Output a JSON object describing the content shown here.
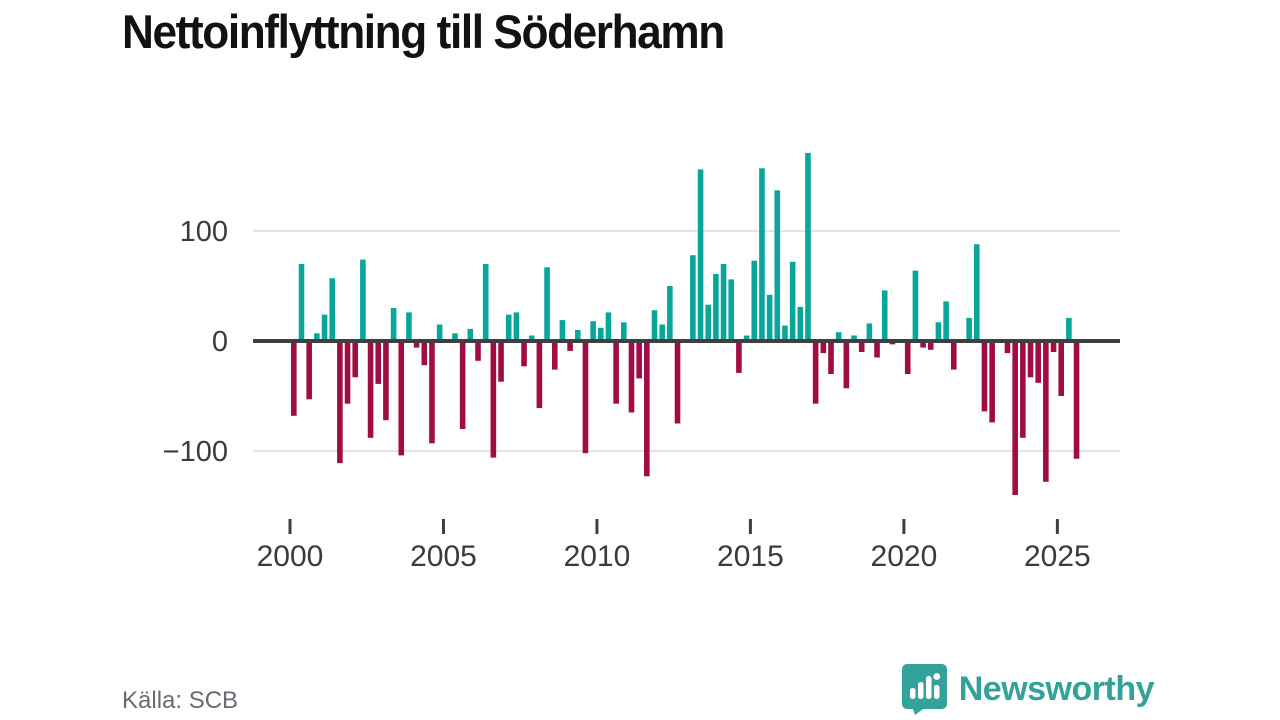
{
  "header": {
    "title": "Nettoinflyttning till Söderhamn"
  },
  "footer": {
    "source": "Källa: SCB",
    "brand": "Newsworthy",
    "brand_icon": "bar-chart-speech-bubble",
    "brand_color": "#33a29a"
  },
  "chart_data": {
    "type": "bar",
    "title": "Nettoinflyttning till Söderhamn",
    "period": "quarterly",
    "start_year": 2000,
    "start_quarter": 1,
    "values": [
      -68,
      70,
      -53,
      7,
      24,
      57,
      -111,
      -57,
      -33,
      74,
      -88,
      -39,
      -72,
      30,
      -104,
      26,
      -6,
      -22,
      -93,
      15,
      0,
      7,
      -80,
      11,
      -18,
      70,
      -106,
      -37,
      24,
      26,
      -23,
      5,
      -61,
      67,
      -26,
      19,
      -9,
      10,
      -102,
      18,
      12,
      26,
      -57,
      17,
      -65,
      -34,
      -123,
      28,
      15,
      50,
      -75,
      0,
      78,
      156,
      33,
      61,
      70,
      56,
      -29,
      5,
      73,
      157,
      42,
      137,
      14,
      72,
      31,
      171,
      -57,
      -11,
      -30,
      8,
      -43,
      5,
      -10,
      16,
      -15,
      46,
      -3,
      0,
      -30,
      64,
      -6,
      -8,
      17,
      36,
      -26,
      0,
      21,
      88,
      -64,
      -74,
      0,
      -11,
      -140,
      -88,
      -33,
      -38,
      -128,
      -10,
      -50,
      21,
      -107
    ],
    "x_tick_years": [
      2000,
      2005,
      2010,
      2015,
      2020,
      2025
    ],
    "y_ticks": [
      {
        "value": 100,
        "label": "100"
      },
      {
        "value": 0,
        "label": "0"
      },
      {
        "value": -100,
        "label": "−100"
      }
    ],
    "ylim": [
      -150,
      180
    ],
    "grid": true,
    "legend": "none",
    "positive_color": "#0aa69c",
    "negative_color": "#a00c44",
    "grid_color": "#e4e4e4",
    "zero_line_color": "#3f3f3f",
    "tick_color": "#3f3f3f"
  }
}
